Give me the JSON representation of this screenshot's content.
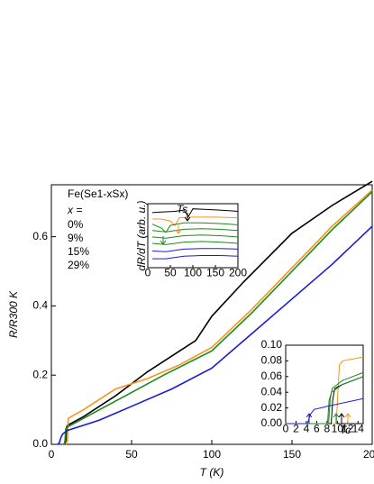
{
  "chart_data": [
    {
      "type": "line",
      "xlabel": "T (K)",
      "ylabel": "R/R300 K",
      "legend_title": "Fe(Se1-xSx)",
      "legend_subtitle": "x =",
      "xlim": [
        0,
        200
      ],
      "ylim": [
        0,
        0.75
      ],
      "xticks": [
        0,
        50,
        100,
        150,
        200
      ],
      "yticks": [
        {
          "value": 0,
          "label": "0.0"
        },
        {
          "value": 0.2,
          "label": "0.2"
        },
        {
          "value": 0.4,
          "label": "0.4"
        },
        {
          "value": 0.6,
          "label": "0.6"
        }
      ],
      "series": [
        {
          "name": "0%",
          "color": "#000000",
          "x": [
            8,
            9,
            9.5,
            10,
            20,
            40,
            60,
            80,
            90,
            100,
            120,
            150,
            175,
            200
          ],
          "values": [
            0,
            0.01,
            0.05,
            0.055,
            0.08,
            0.14,
            0.21,
            0.27,
            0.3,
            0.37,
            0.47,
            0.61,
            0.69,
            0.76
          ]
        },
        {
          "name": "9%",
          "color": "#f7941d",
          "x": [
            9,
            10,
            10.5,
            20,
            30,
            40,
            50,
            60,
            80,
            100,
            125,
            150,
            175,
            200
          ],
          "values": [
            0,
            0.01,
            0.075,
            0.1,
            0.13,
            0.16,
            0.175,
            0.19,
            0.23,
            0.28,
            0.39,
            0.51,
            0.63,
            0.735
          ]
        },
        {
          "name": "15%",
          "color": "#1a8a1a",
          "x": [
            8,
            8.5,
            9,
            10,
            30,
            50,
            70,
            100,
            125,
            150,
            175,
            200
          ],
          "values": [
            0,
            0.01,
            0.045,
            0.05,
            0.1,
            0.15,
            0.2,
            0.27,
            0.38,
            0.5,
            0.62,
            0.73
          ]
        },
        {
          "name": "29%",
          "color": "#1a1adb",
          "x": [
            4,
            5,
            6,
            7,
            10,
            30,
            50,
            75,
            100,
            125,
            150,
            175,
            200
          ],
          "values": [
            0,
            0.005,
            0.02,
            0.03,
            0.04,
            0.07,
            0.11,
            0.16,
            0.22,
            0.32,
            0.42,
            0.52,
            0.63
          ]
        }
      ]
    },
    {
      "type": "line",
      "ylabel": "dR/dT (arb. u.)",
      "annotation": "Ts",
      "xlim": [
        0,
        200
      ],
      "ylim": [
        0,
        10
      ],
      "xticks": [
        0,
        50,
        100,
        150,
        200
      ],
      "series": [
        {
          "color": "#000000",
          "x": [
            10,
            30,
            60,
            80,
            90,
            100,
            130,
            160,
            200
          ],
          "values": [
            8.6,
            8.7,
            8.8,
            9.0,
            8.0,
            9.2,
            9.1,
            9.0,
            8.8
          ]
        },
        {
          "color": "#f7941d",
          "x": [
            10,
            30,
            50,
            60,
            70,
            100,
            150,
            200
          ],
          "values": [
            7.6,
            7.6,
            7.3,
            6.6,
            7.8,
            7.9,
            7.9,
            7.8
          ]
        },
        {
          "color": "#1a8a1a",
          "x": [
            10,
            30,
            40,
            50,
            80,
            120,
            160,
            200
          ],
          "values": [
            6.8,
            6.2,
            5.5,
            6.6,
            7.0,
            7.0,
            6.9,
            6.7
          ]
        },
        {
          "color": "#1a8a1a",
          "x": [
            10,
            40,
            80,
            120,
            160,
            200
          ],
          "values": [
            5.8,
            5.6,
            6.0,
            6.1,
            6.0,
            5.8
          ]
        },
        {
          "color": "#1a8a1a",
          "x": [
            10,
            40,
            80,
            120,
            160,
            200
          ],
          "values": [
            4.8,
            4.6,
            5.0,
            5.1,
            5.0,
            4.8
          ]
        },
        {
          "color": "#1a8a1a",
          "x": [
            10,
            40,
            80,
            120,
            160,
            200
          ],
          "values": [
            3.8,
            3.6,
            4.0,
            4.1,
            4.0,
            3.8
          ]
        },
        {
          "color": "#1a1adb",
          "x": [
            10,
            40,
            80,
            120,
            160,
            200
          ],
          "values": [
            2.6,
            2.5,
            2.9,
            3.0,
            3.0,
            2.9
          ]
        },
        {
          "color": "#1a1adb",
          "x": [
            10,
            40,
            80,
            120,
            160,
            200
          ],
          "values": [
            1.4,
            1.4,
            1.8,
            1.9,
            1.9,
            1.8
          ]
        }
      ]
    },
    {
      "type": "line",
      "annotation": "Tc",
      "xlim": [
        0,
        15
      ],
      "ylim": [
        0,
        0.1
      ],
      "xticks": [
        0,
        2,
        4,
        6,
        8,
        10,
        12,
        14
      ],
      "yticks": [
        {
          "value": 0,
          "label": "0.00"
        },
        {
          "value": 0.02,
          "label": "0.02"
        },
        {
          "value": 0.04,
          "label": "0.04"
        },
        {
          "value": 0.06,
          "label": "0.06"
        },
        {
          "value": 0.08,
          "label": "0.08"
        },
        {
          "value": 0.1,
          "label": "0.10"
        }
      ],
      "series": [
        {
          "color": "#f7941d",
          "x": [
            0,
            9.8,
            10.1,
            10.4,
            11,
            15
          ],
          "values": [
            0,
            0,
            0.04,
            0.075,
            0.08,
            0.085
          ]
        },
        {
          "color": "#000000",
          "x": [
            0,
            8.8,
            9.1,
            9.5,
            11,
            15
          ],
          "values": [
            0,
            0,
            0.03,
            0.045,
            0.05,
            0.06
          ]
        },
        {
          "color": "#1a8a1a",
          "x": [
            0,
            8.3,
            8.6,
            9.0,
            11,
            15
          ],
          "values": [
            0,
            0,
            0.03,
            0.045,
            0.055,
            0.065
          ]
        },
        {
          "color": "#1a8a1a",
          "x": [
            0,
            8.1,
            8.4,
            8.9,
            11,
            15
          ],
          "values": [
            0,
            0,
            0.03,
            0.04,
            0.05,
            0.06
          ]
        },
        {
          "color": "#1a1adb",
          "x": [
            0,
            4.2,
            4.8,
            5.5,
            8,
            15
          ],
          "values": [
            0,
            0,
            0.012,
            0.018,
            0.022,
            0.032
          ]
        }
      ]
    }
  ]
}
